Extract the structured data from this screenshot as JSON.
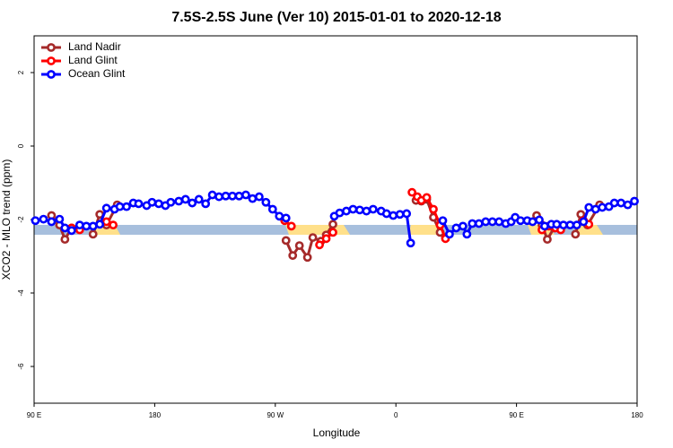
{
  "chart_data": {
    "type": "line",
    "title": "7.5S-2.5S June (Ver 10)   2015-01-01 to 2020-12-18",
    "xlabel": "Longitude",
    "ylabel": "XCO2 - MLO trend (ppm)",
    "xlim": [
      90,
      540
    ],
    "xticks": [
      {
        "value": 90,
        "label": "90 E"
      },
      180,
      {
        "value": 270,
        "label": "90 W"
      },
      {
        "value": 360,
        "label": "0"
      },
      {
        "value": 450,
        "label": "90 E"
      },
      {
        "value": 540,
        "label": "180"
      }
    ],
    "ylim": [
      -7,
      3
    ],
    "yticks": [
      -6,
      -4,
      -2,
      0,
      2
    ],
    "legend": "top-left",
    "series": [
      {
        "name": "Land Nadir",
        "color": "#a52a2a",
        "x": [
          103,
          109,
          113,
          118,
          125,
          134,
          139,
          144,
          152,
          200,
          278,
          283,
          288,
          294,
          298,
          304,
          308,
          313,
          340,
          375,
          379,
          383,
          388,
          393,
          397,
          430,
          465,
          469,
          473,
          478,
          485,
          494,
          498,
          503,
          512
        ],
        "values": [
          -1.89,
          -2.15,
          -2.54,
          -2.23,
          null,
          -2.4,
          -1.86,
          -2.15,
          -1.6,
          null,
          -2.57,
          -2.98,
          -2.71,
          -3.03,
          -2.49,
          -2.59,
          -2.42,
          -2.13,
          null,
          -1.48,
          -1.5,
          -1.45,
          -1.94,
          -2.35,
          -2.49,
          null,
          -1.89,
          -2.15,
          -2.54,
          -2.23,
          null,
          -2.4,
          -1.86,
          -2.15,
          -1.6
        ]
      },
      {
        "name": "Land Glint",
        "color": "#ff0000",
        "x": [
          118,
          124,
          130,
          144,
          149,
          200,
          277,
          282,
          290,
          303,
          308,
          313,
          340,
          372,
          376,
          379,
          383,
          388,
          393,
          397,
          430,
          469,
          474,
          479,
          483,
          490,
          500,
          504
        ],
        "values": [
          -2.23,
          -2.28,
          null,
          -2.06,
          -2.15,
          null,
          -2.03,
          -2.18,
          null,
          -2.69,
          -2.52,
          -2.35,
          null,
          -1.26,
          -1.38,
          -1.48,
          -1.4,
          -1.72,
          -2.15,
          -2.52,
          null,
          -2.28,
          -2.18,
          -2.23,
          -2.28,
          null,
          -2.03,
          -2.13
        ]
      },
      {
        "name": "Ocean Glint",
        "color": "#0000ff",
        "x": [
          91,
          97,
          103,
          109,
          113,
          118,
          124,
          129,
          134,
          139,
          144,
          150,
          154,
          159,
          164,
          168,
          174,
          178,
          183,
          188,
          192,
          198,
          203,
          208,
          213,
          218,
          223,
          228,
          233,
          238,
          243,
          248,
          253,
          258,
          263,
          268,
          273,
          278,
          295,
          314,
          318,
          323,
          328,
          333,
          338,
          343,
          349,
          353,
          358,
          363,
          368,
          371,
          383,
          395,
          400,
          405,
          410,
          413,
          417,
          422,
          427,
          432,
          437,
          442,
          446,
          449,
          453,
          458,
          462,
          467,
          471,
          476,
          480,
          485,
          490,
          495,
          500,
          504,
          509,
          514,
          519,
          523,
          528,
          533,
          538
        ],
        "values": [
          -2.03,
          -1.99,
          -2.06,
          -1.99,
          -2.23,
          -2.3,
          -2.15,
          -2.18,
          -2.18,
          -2.13,
          -1.69,
          -1.72,
          -1.65,
          -1.65,
          -1.55,
          -1.57,
          -1.62,
          -1.53,
          -1.57,
          -1.62,
          -1.53,
          -1.5,
          -1.45,
          -1.55,
          -1.45,
          -1.57,
          -1.33,
          -1.38,
          -1.36,
          -1.36,
          -1.36,
          -1.33,
          -1.43,
          -1.38,
          -1.53,
          -1.72,
          -1.91,
          -1.96,
          null,
          -1.91,
          -1.82,
          -1.77,
          -1.72,
          -1.74,
          -1.77,
          -1.72,
          -1.77,
          -1.84,
          -1.89,
          -1.86,
          -1.84,
          -2.64,
          null,
          -2.03,
          -2.4,
          -2.23,
          -2.18,
          -2.4,
          -2.11,
          -2.11,
          -2.06,
          -2.06,
          -2.06,
          -2.11,
          -2.06,
          -1.94,
          -2.03,
          -2.03,
          -2.06,
          -2.01,
          -2.18,
          -2.13,
          -2.13,
          -2.15,
          -2.15,
          -2.15,
          -2.06,
          -1.67,
          -1.72,
          -1.67,
          -1.65,
          -1.55,
          -1.55,
          -1.6,
          -1.5
        ]
      }
    ]
  }
}
